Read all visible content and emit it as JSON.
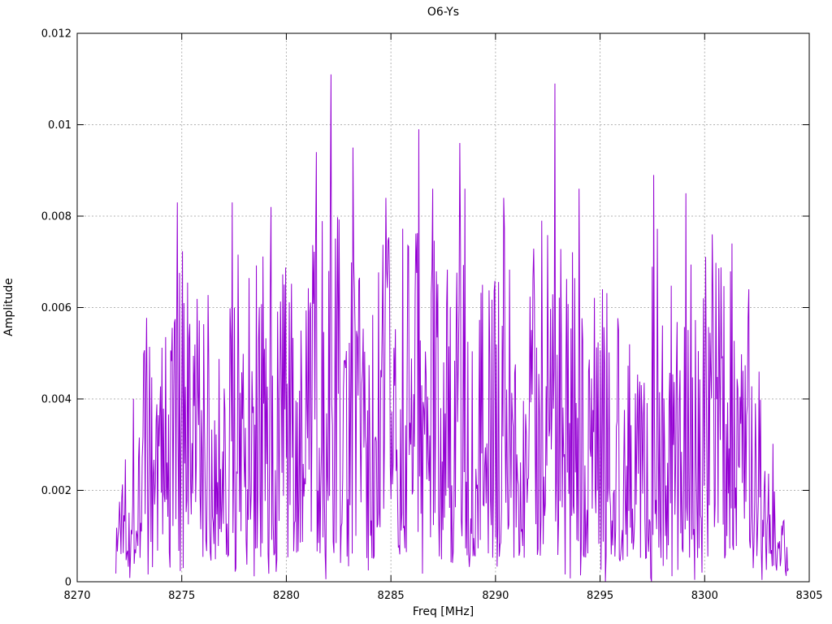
{
  "chart_data": {
    "type": "line",
    "title": "O6-Ys",
    "xlabel": "Freq [MHz]",
    "ylabel": "Amplitude",
    "xlim": [
      8270,
      8305
    ],
    "ylim": [
      0,
      0.012
    ],
    "xticks": [
      8270,
      8275,
      8280,
      8285,
      8290,
      8295,
      8300,
      8305
    ],
    "xtick_labels": [
      "8270",
      "8275",
      "8280",
      "8285",
      "8290",
      "8295",
      "8300",
      "8305"
    ],
    "yticks": [
      0,
      0.002,
      0.004,
      0.006,
      0.008,
      0.01,
      0.012
    ],
    "ytick_labels": [
      "0",
      "0.002",
      "0.004",
      "0.006",
      "0.008",
      "0.01",
      "0.012"
    ],
    "grid": true,
    "legend": "none",
    "line_color": "#9400d3",
    "line_width": 1,
    "grid_color": "#b1b1b1",
    "border_color": "#000000",
    "background_color": "#ffffff",
    "series_generation": {
      "comment": "noisy spectrum trace: random spikes bounded by piecewise-linear envelope [freqMHz, maxAmplitude]; explicit major peaks [freqMHz, amplitude] read from screenshot",
      "seed": 1337,
      "n_points": 920,
      "x_start": 8271.85,
      "x_end": 8304.0,
      "base_fraction": 0.07,
      "shape_exponent": 1.45,
      "dip_chance": 0.045,
      "dip_scale": 0.08,
      "envelope": [
        [
          8271.85,
          0.0012
        ],
        [
          8272.1,
          0.0038
        ],
        [
          8272.6,
          0.0045
        ],
        [
          8273.0,
          0.0063
        ],
        [
          8273.6,
          0.0058
        ],
        [
          8274.3,
          0.0062
        ],
        [
          8274.8,
          0.0077
        ],
        [
          8275.4,
          0.0068
        ],
        [
          8276.1,
          0.0066
        ],
        [
          8276.8,
          0.006
        ],
        [
          8277.4,
          0.0077
        ],
        [
          8278.2,
          0.0073
        ],
        [
          8279.0,
          0.0076
        ],
        [
          8279.6,
          0.008
        ],
        [
          8280.3,
          0.0064
        ],
        [
          8281.0,
          0.0068
        ],
        [
          8281.5,
          0.0086
        ],
        [
          8282.2,
          0.0085
        ],
        [
          8283.0,
          0.0078
        ],
        [
          8283.7,
          0.0073
        ],
        [
          8284.3,
          0.007
        ],
        [
          8285.0,
          0.008
        ],
        [
          8285.6,
          0.0082
        ],
        [
          8286.3,
          0.0082
        ],
        [
          8287.0,
          0.008
        ],
        [
          8287.7,
          0.007
        ],
        [
          8288.4,
          0.0082
        ],
        [
          8289.1,
          0.0077
        ],
        [
          8289.8,
          0.0072
        ],
        [
          8290.4,
          0.008
        ],
        [
          8291.2,
          0.0066
        ],
        [
          8292.0,
          0.0075
        ],
        [
          8292.8,
          0.008
        ],
        [
          8293.5,
          0.0072
        ],
        [
          8294.1,
          0.0078
        ],
        [
          8294.8,
          0.007
        ],
        [
          8295.5,
          0.0065
        ],
        [
          8296.3,
          0.0062
        ],
        [
          8297.0,
          0.007
        ],
        [
          8297.6,
          0.008
        ],
        [
          8298.3,
          0.0068
        ],
        [
          8299.0,
          0.0076
        ],
        [
          8299.8,
          0.0073
        ],
        [
          8300.5,
          0.0072
        ],
        [
          8301.2,
          0.0069
        ],
        [
          8301.9,
          0.0063
        ],
        [
          8302.5,
          0.0057
        ],
        [
          8303.0,
          0.004
        ],
        [
          8303.5,
          0.0024
        ],
        [
          8303.9,
          0.0015
        ],
        [
          8304.0,
          0.0004
        ]
      ],
      "peaks": [
        [
          8274.8,
          0.0083
        ],
        [
          8277.4,
          0.0083
        ],
        [
          8279.25,
          0.0082
        ],
        [
          8281.45,
          0.0094
        ],
        [
          8282.15,
          0.0111
        ],
        [
          8283.2,
          0.0095
        ],
        [
          8284.75,
          0.0084
        ],
        [
          8286.35,
          0.0099
        ],
        [
          8287.0,
          0.0086
        ],
        [
          8288.3,
          0.0096
        ],
        [
          8288.55,
          0.0086
        ],
        [
          8290.4,
          0.0084
        ],
        [
          8292.2,
          0.0079
        ],
        [
          8292.85,
          0.0109
        ],
        [
          8294.0,
          0.0086
        ],
        [
          8295.1,
          0.0064
        ],
        [
          8297.55,
          0.0089
        ],
        [
          8299.1,
          0.0085
        ],
        [
          8300.35,
          0.0076
        ],
        [
          8301.3,
          0.0074
        ],
        [
          8302.1,
          0.0064
        ]
      ]
    }
  }
}
